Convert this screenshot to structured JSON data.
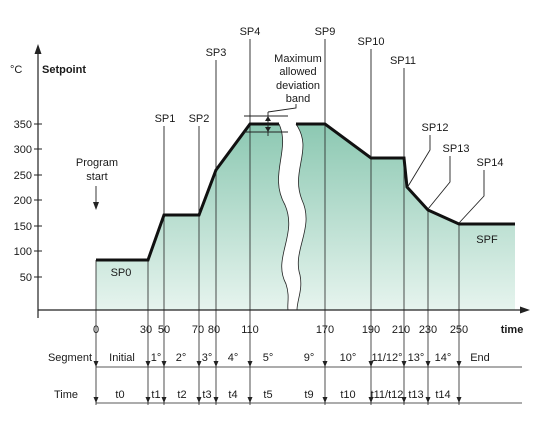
{
  "colors": {
    "fill_top": "#8cc8b2",
    "fill_bottom": "#e6f4ee",
    "line": "#111111",
    "text": "#1a1a1a"
  },
  "chart_data": {
    "type": "line",
    "ylabel_unit": "°C",
    "ylabel": "Setpoint",
    "xlabel": "time",
    "y_ticks": [
      350,
      300,
      250,
      200,
      150,
      100,
      50
    ],
    "x_ticks": [
      "0",
      "30",
      "50",
      "70",
      "80",
      "110",
      "170",
      "190",
      "210",
      "230",
      "250"
    ],
    "ylim": [
      0,
      370
    ],
    "series": [
      {
        "x": [
          0,
          30,
          50,
          70,
          80,
          110,
          130
        ],
        "y": [
          85,
          85,
          170,
          170,
          260,
          350,
          350
        ]
      },
      {
        "x": [
          150,
          170,
          190,
          210,
          212,
          230,
          250,
          280
        ],
        "y": [
          350,
          350,
          280,
          280,
          225,
          180,
          155,
          155
        ]
      }
    ],
    "point_labels": {
      "SP0": "SP0",
      "SP1": "SP1",
      "SP2": "SP2",
      "SP3": "SP3",
      "SP4": "SP4",
      "SP9": "SP9",
      "SP10": "SP10",
      "SP11": "SP11",
      "SP12": "SP12",
      "SP13": "SP13",
      "SP14": "SP14",
      "SPF": "SPF"
    },
    "annotations": {
      "program_start_line1": "Program",
      "program_start_line2": "start",
      "deviation_line1": "Maximum",
      "deviation_line2": "allowed",
      "deviation_line3": "deviation",
      "deviation_line4": "band"
    }
  },
  "segment_row": {
    "label": "Segment",
    "cells": [
      "Initial",
      "1°",
      "2°",
      "3°",
      "4°",
      "5°",
      "9°",
      "10°",
      "11/12°",
      "13°",
      "14°",
      "End"
    ]
  },
  "time_row": {
    "label": "Time",
    "cells": [
      "t0",
      "t1",
      "t2",
      "t3",
      "t4",
      "t5",
      "t9",
      "t10",
      "t11/t12",
      "t13",
      "t14"
    ]
  }
}
